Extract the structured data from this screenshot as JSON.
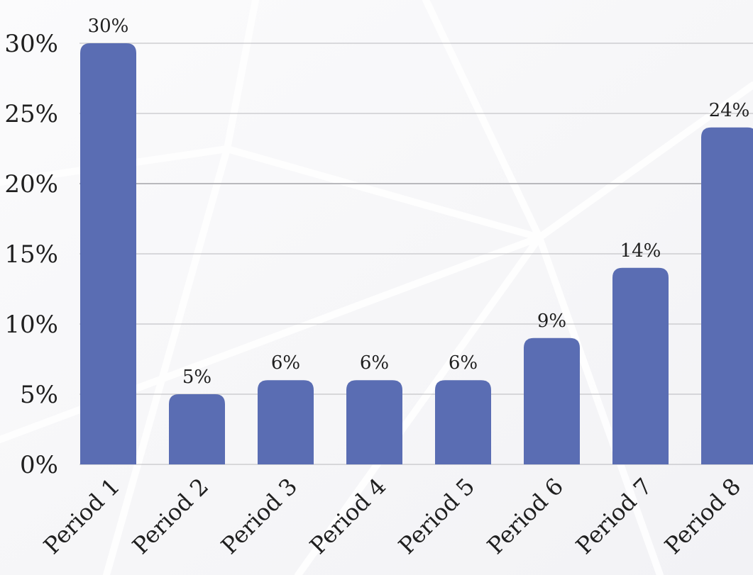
{
  "chart_data": {
    "type": "bar",
    "categories": [
      "Period 1",
      "Period 2",
      "Period 3",
      "Period 4",
      "Period 5",
      "Period 6",
      "Period 7",
      "Period 8"
    ],
    "values": [
      30,
      5,
      6,
      6,
      6,
      9,
      14,
      24
    ],
    "data_labels": [
      "30%",
      "5%",
      "6%",
      "6%",
      "6%",
      "9%",
      "14%",
      "24%"
    ],
    "y_ticks": [
      "0%",
      "5%",
      "10%",
      "15%",
      "20%",
      "25%",
      "30%"
    ],
    "ylim": [
      0,
      30
    ],
    "grid": true,
    "colors": {
      "bar": "#5a6db3",
      "grid": "#b9b9bd",
      "text": "#1f1f1f"
    }
  }
}
